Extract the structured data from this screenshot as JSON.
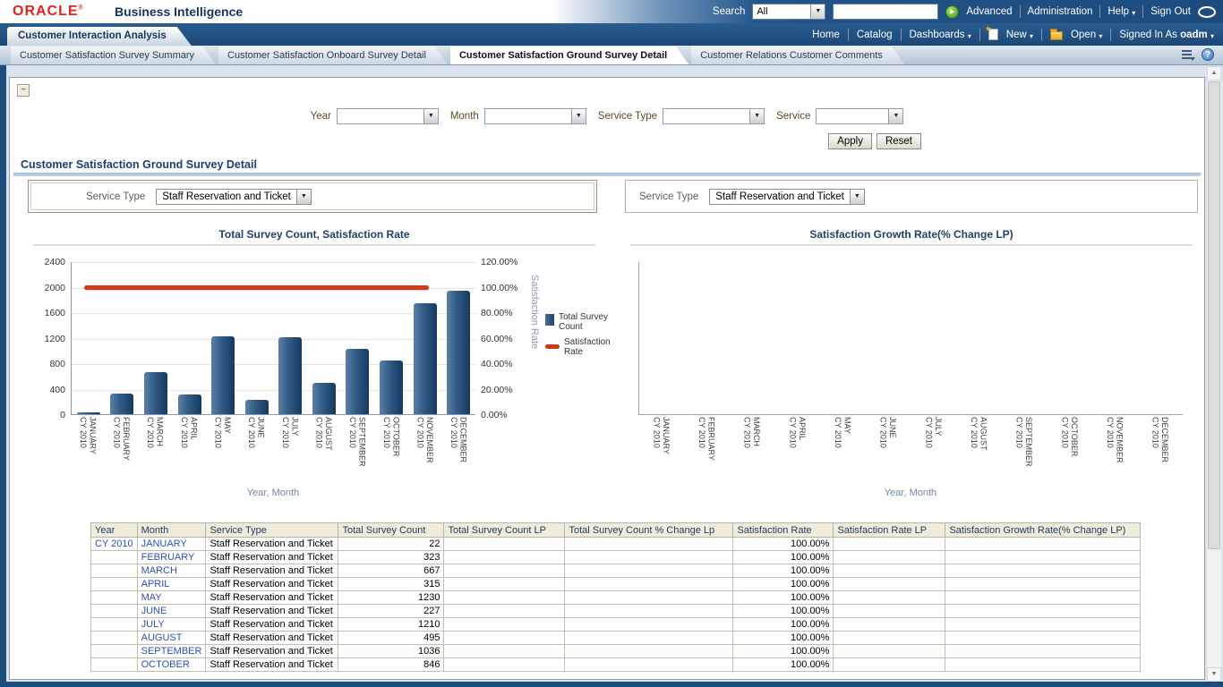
{
  "brand": {
    "logo": "ORACLE",
    "registered": "®",
    "product": "Business Intelligence"
  },
  "topbar": {
    "search_label": "Search",
    "scope_value": "All",
    "go_icon": "▶",
    "advanced": "Advanced",
    "administration": "Administration",
    "help": "Help",
    "sign_out": "Sign Out"
  },
  "navbar": {
    "main_tab": "Customer Interaction Analysis",
    "home": "Home",
    "catalog": "Catalog",
    "dashboards": "Dashboards",
    "new_label": "New",
    "open_label": "Open",
    "signed_in_prefix": "Signed In As",
    "user": "oadm"
  },
  "subtabs": {
    "tabs": [
      {
        "label": "Customer Satisfaction Survey Summary",
        "active": false
      },
      {
        "label": "Customer Satisfaction Onboard Survey Detail",
        "active": false
      },
      {
        "label": "Customer Satisfaction Ground Survey Detail",
        "active": true
      },
      {
        "label": "Customer Relations Customer Comments",
        "active": false
      }
    ],
    "help_icon": "?"
  },
  "prompts": {
    "year_label": "Year",
    "month_label": "Month",
    "service_type_label": "Service Type",
    "service_label": "Service",
    "apply": "Apply",
    "reset": "Reset"
  },
  "section": {
    "title": "Customer Satisfaction Ground Survey Detail",
    "collapse_icon": "−"
  },
  "panels": {
    "left": {
      "label": "Service Type",
      "value": "Staff Reservation and Ticket"
    },
    "right": {
      "label": "Service Type",
      "value": "Staff Reservation and Ticket"
    }
  },
  "chart_data": [
    {
      "type": "bar",
      "title": "Total Survey Count, Satisfaction Rate",
      "category_prefix": "CY 2010",
      "categories": [
        "JANUARY",
        "FEBRUARY",
        "MARCH",
        "APRIL",
        "MAY",
        "JUNE",
        "JULY",
        "AUGUST",
        "SEPTEMBER",
        "OCTOBER",
        "NOVEMBER",
        "DECEMBER"
      ],
      "series": [
        {
          "name": "Total Survey Count",
          "type": "bar",
          "values": [
            22,
            323,
            667,
            315,
            1230,
            227,
            1210,
            495,
            1036,
            846,
            1745,
            1950
          ]
        },
        {
          "name": "Satisfaction Rate",
          "type": "line",
          "unit": "%",
          "values": [
            100,
            100,
            100,
            100,
            100,
            100,
            100,
            100,
            100,
            100,
            100,
            100
          ]
        }
      ],
      "xlabel": "Year, Month",
      "y_left": {
        "ticks": [
          0,
          400,
          800,
          1200,
          1600,
          2000,
          2400
        ],
        "max": 2400
      },
      "y_right": {
        "tick_labels": [
          "0.00%",
          "20.00%",
          "40.00%",
          "60.00%",
          "80.00%",
          "100.00%",
          "120.00%"
        ],
        "label": "Satisfaction Rate",
        "max": 120
      },
      "legend": [
        "Total Survey Count",
        "Satisfaction Rate"
      ],
      "bar_color": "#2f5a85",
      "line_color": "#cf3a17",
      "grid": true,
      "legend_position": "right"
    },
    {
      "type": "line",
      "title": "Satisfaction Growth Rate(% Change LP)",
      "category_prefix": "CY 2010",
      "categories": [
        "JANUARY",
        "FEBRUARY",
        "MARCH",
        "APRIL",
        "MAY",
        "JUNE",
        "JULY",
        "AUGUST",
        "SEPTEMBER",
        "OCTOBER",
        "NOVEMBER",
        "DECEMBER"
      ],
      "series": [],
      "values": [],
      "xlabel": "Year, Month",
      "grid": false,
      "note": "empty plot - no data rendered"
    }
  ],
  "table": {
    "columns": [
      "Year",
      "Month",
      "Service Type",
      "Total Survey Count",
      "Total Survey Count LP",
      "Total Survey Count % Change Lp",
      "Satisfaction Rate",
      "Satisfaction Rate LP",
      "Satisfaction Growth Rate(% Change LP)"
    ],
    "rows": [
      [
        "CY 2010",
        "JANUARY",
        "Staff Reservation and Ticket",
        "22",
        "",
        "",
        "100.00%",
        "",
        ""
      ],
      [
        "",
        "FEBRUARY",
        "Staff Reservation and Ticket",
        "323",
        "",
        "",
        "100.00%",
        "",
        ""
      ],
      [
        "",
        "MARCH",
        "Staff Reservation and Ticket",
        "667",
        "",
        "",
        "100.00%",
        "",
        ""
      ],
      [
        "",
        "APRIL",
        "Staff Reservation and Ticket",
        "315",
        "",
        "",
        "100.00%",
        "",
        ""
      ],
      [
        "",
        "MAY",
        "Staff Reservation and Ticket",
        "1230",
        "",
        "",
        "100.00%",
        "",
        ""
      ],
      [
        "",
        "JUNE",
        "Staff Reservation and Ticket",
        "227",
        "",
        "",
        "100.00%",
        "",
        ""
      ],
      [
        "",
        "JULY",
        "Staff Reservation and Ticket",
        "1210",
        "",
        "",
        "100.00%",
        "",
        ""
      ],
      [
        "",
        "AUGUST",
        "Staff Reservation and Ticket",
        "495",
        "",
        "",
        "100.00%",
        "",
        ""
      ],
      [
        "",
        "SEPTEMBER",
        "Staff Reservation and Ticket",
        "1036",
        "",
        "",
        "100.00%",
        "",
        ""
      ],
      [
        "",
        "OCTOBER",
        "Staff Reservation and Ticket",
        "846",
        "",
        "",
        "100.00%",
        "",
        ""
      ]
    ]
  }
}
